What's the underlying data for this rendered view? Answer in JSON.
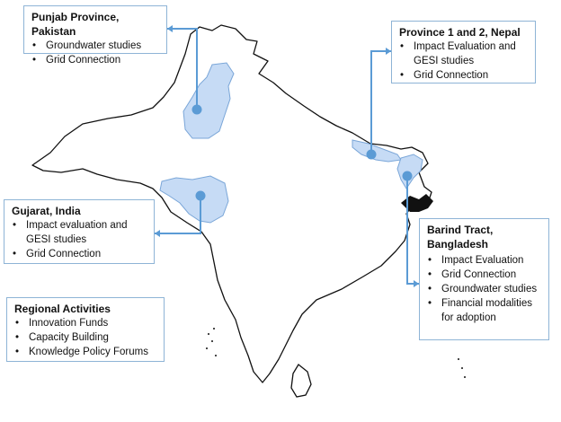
{
  "callouts": {
    "punjab": {
      "title": "Punjab Province, Pakistan",
      "items": [
        "Groundwater studies",
        "Grid Connection"
      ]
    },
    "nepal": {
      "title": "Province 1 and 2, Nepal",
      "items": [
        "Impact Evaluation and GESI studies",
        "Grid Connection"
      ]
    },
    "gujarat": {
      "title": "Gujarat, India",
      "items": [
        "Impact evaluation and GESI studies",
        "Grid Connection"
      ]
    },
    "barind": {
      "title": "Barind Tract, Bangladesh",
      "items": [
        "Impact Evaluation",
        "Grid Connection",
        "Groundwater studies",
        "Financial modalities for adoption"
      ]
    },
    "regional": {
      "title": "Regional Activities",
      "items": [
        "Innovation Funds",
        "Capacity Building",
        "Knowledge Policy Forums"
      ]
    }
  },
  "colors": {
    "highlight_fill": "#c6dbf5",
    "highlight_stroke": "#7aa6d8",
    "connector": "#5b9bd5",
    "border": "#8eb4d6"
  }
}
